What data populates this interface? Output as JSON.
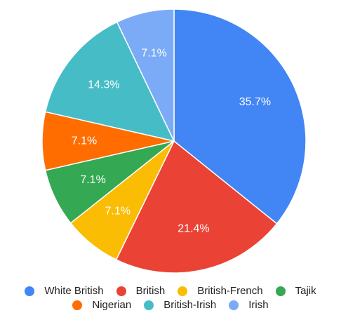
{
  "chart_data": {
    "type": "pie",
    "title": "",
    "categories": [
      "White British",
      "British",
      "British-French",
      "Tajik",
      "Nigerian",
      "British-Irish",
      "Irish"
    ],
    "values": [
      35.7,
      21.4,
      7.1,
      7.1,
      7.1,
      14.3,
      7.1
    ],
    "labels": [
      "35.7%",
      "21.4%",
      "7.1%",
      "7.1%",
      "7.1%",
      "14.3%",
      "7.1%"
    ],
    "colors": [
      "#4285f4",
      "#ea4335",
      "#fbbc04",
      "#34a853",
      "#ff6d01",
      "#46bdc6",
      "#7baaf7"
    ],
    "start_angle_deg": 0,
    "direction": "clockwise",
    "legend_position": "bottom"
  }
}
